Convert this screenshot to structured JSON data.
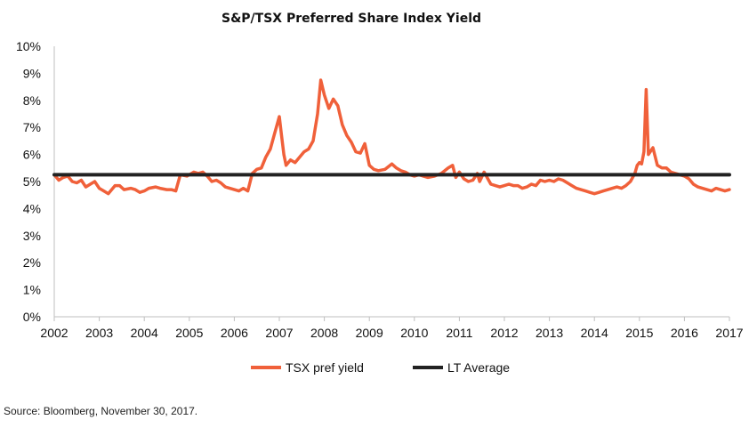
{
  "chart_data": {
    "type": "line",
    "title": "S&P/TSX Preferred Share Index Yield",
    "xlabel": "",
    "ylabel": "",
    "xlim": [
      2002,
      2017
    ],
    "ylim": [
      0,
      10
    ],
    "x_ticks": [
      "2002",
      "2003",
      "2004",
      "2005",
      "2006",
      "2007",
      "2008",
      "2009",
      "2010",
      "2011",
      "2012",
      "2013",
      "2014",
      "2015",
      "2016",
      "2017"
    ],
    "y_ticks": [
      "0%",
      "1%",
      "2%",
      "3%",
      "4%",
      "5%",
      "6%",
      "7%",
      "8%",
      "9%",
      "10%"
    ],
    "grid": false,
    "legend_position": "bottom",
    "series": [
      {
        "name": "TSX pref yield",
        "color": "#f0603a",
        "x": [
          2002.0,
          2002.1,
          2002.2,
          2002.3,
          2002.4,
          2002.5,
          2002.6,
          2002.7,
          2002.8,
          2002.9,
          2003.0,
          2003.1,
          2003.2,
          2003.35,
          2003.45,
          2003.55,
          2003.7,
          2003.8,
          2003.9,
          2004.0,
          2004.1,
          2004.25,
          2004.35,
          2004.5,
          2004.6,
          2004.7,
          2004.8,
          2004.95,
          2005.0,
          2005.1,
          2005.2,
          2005.3,
          2005.4,
          2005.5,
          2005.6,
          2005.7,
          2005.8,
          2005.9,
          2006.0,
          2006.1,
          2006.2,
          2006.3,
          2006.4,
          2006.5,
          2006.6,
          2006.7,
          2006.8,
          2006.9,
          2007.0,
          2007.05,
          2007.1,
          2007.15,
          2007.25,
          2007.35,
          2007.45,
          2007.55,
          2007.65,
          2007.75,
          2007.85,
          2007.92,
          2008.0,
          2008.1,
          2008.2,
          2008.3,
          2008.4,
          2008.5,
          2008.6,
          2008.7,
          2008.8,
          2008.9,
          2009.0,
          2009.1,
          2009.2,
          2009.35,
          2009.5,
          2009.6,
          2009.7,
          2009.8,
          2009.9,
          2010.0,
          2010.1,
          2010.2,
          2010.3,
          2010.45,
          2010.6,
          2010.75,
          2010.85,
          2010.92,
          2011.0,
          2011.1,
          2011.2,
          2011.3,
          2011.4,
          2011.45,
          2011.55,
          2011.7,
          2011.8,
          2011.9,
          2012.0,
          2012.1,
          2012.2,
          2012.3,
          2012.4,
          2012.5,
          2012.6,
          2012.7,
          2012.8,
          2012.9,
          2013.0,
          2013.1,
          2013.2,
          2013.3,
          2013.4,
          2013.5,
          2013.6,
          2013.7,
          2013.8,
          2013.9,
          2014.0,
          2014.1,
          2014.2,
          2014.3,
          2014.4,
          2014.5,
          2014.6,
          2014.7,
          2014.8,
          2014.9,
          2014.95,
          2015.0,
          2015.05,
          2015.1,
          2015.15,
          2015.2,
          2015.3,
          2015.4,
          2015.5,
          2015.6,
          2015.7,
          2015.8,
          2015.9,
          2016.0,
          2016.1,
          2016.2,
          2016.3,
          2016.4,
          2016.5,
          2016.6,
          2016.7,
          2016.8,
          2016.9,
          2017.0
        ],
        "values": [
          5.25,
          5.05,
          5.15,
          5.2,
          5.0,
          4.95,
          5.05,
          4.8,
          4.9,
          5.0,
          4.75,
          4.65,
          4.55,
          4.85,
          4.85,
          4.7,
          4.75,
          4.7,
          4.6,
          4.65,
          4.75,
          4.8,
          4.75,
          4.7,
          4.7,
          4.65,
          5.25,
          5.2,
          5.25,
          5.35,
          5.3,
          5.35,
          5.2,
          5.0,
          5.05,
          4.95,
          4.8,
          4.75,
          4.7,
          4.65,
          4.75,
          4.65,
          5.3,
          5.45,
          5.5,
          5.9,
          6.2,
          6.8,
          7.4,
          6.7,
          6.0,
          5.6,
          5.8,
          5.7,
          5.9,
          6.1,
          6.2,
          6.5,
          7.5,
          8.75,
          8.2,
          7.7,
          8.05,
          7.8,
          7.1,
          6.7,
          6.45,
          6.1,
          6.05,
          6.4,
          5.6,
          5.45,
          5.4,
          5.45,
          5.65,
          5.5,
          5.4,
          5.35,
          5.25,
          5.2,
          5.25,
          5.2,
          5.15,
          5.2,
          5.3,
          5.5,
          5.6,
          5.15,
          5.35,
          5.1,
          5.0,
          5.05,
          5.3,
          5.0,
          5.35,
          4.9,
          4.85,
          4.8,
          4.85,
          4.9,
          4.85,
          4.85,
          4.75,
          4.8,
          4.9,
          4.85,
          5.05,
          5.0,
          5.05,
          5.0,
          5.1,
          5.05,
          4.95,
          4.85,
          4.75,
          4.7,
          4.65,
          4.6,
          4.55,
          4.6,
          4.65,
          4.7,
          4.75,
          4.8,
          4.75,
          4.85,
          5.0,
          5.3,
          5.6,
          5.7,
          5.65,
          6.1,
          8.4,
          6.0,
          6.25,
          5.6,
          5.5,
          5.5,
          5.35,
          5.3,
          5.25,
          5.2,
          5.1,
          4.9,
          4.8,
          4.75,
          4.7,
          4.65,
          4.75,
          4.7,
          4.65,
          4.7
        ]
      },
      {
        "name": "LT Average",
        "color": "#222222",
        "x": [
          2002.0,
          2017.0
        ],
        "values": [
          5.25,
          5.25
        ]
      }
    ],
    "source": "Source: Bloomberg, November 30, 2017."
  }
}
